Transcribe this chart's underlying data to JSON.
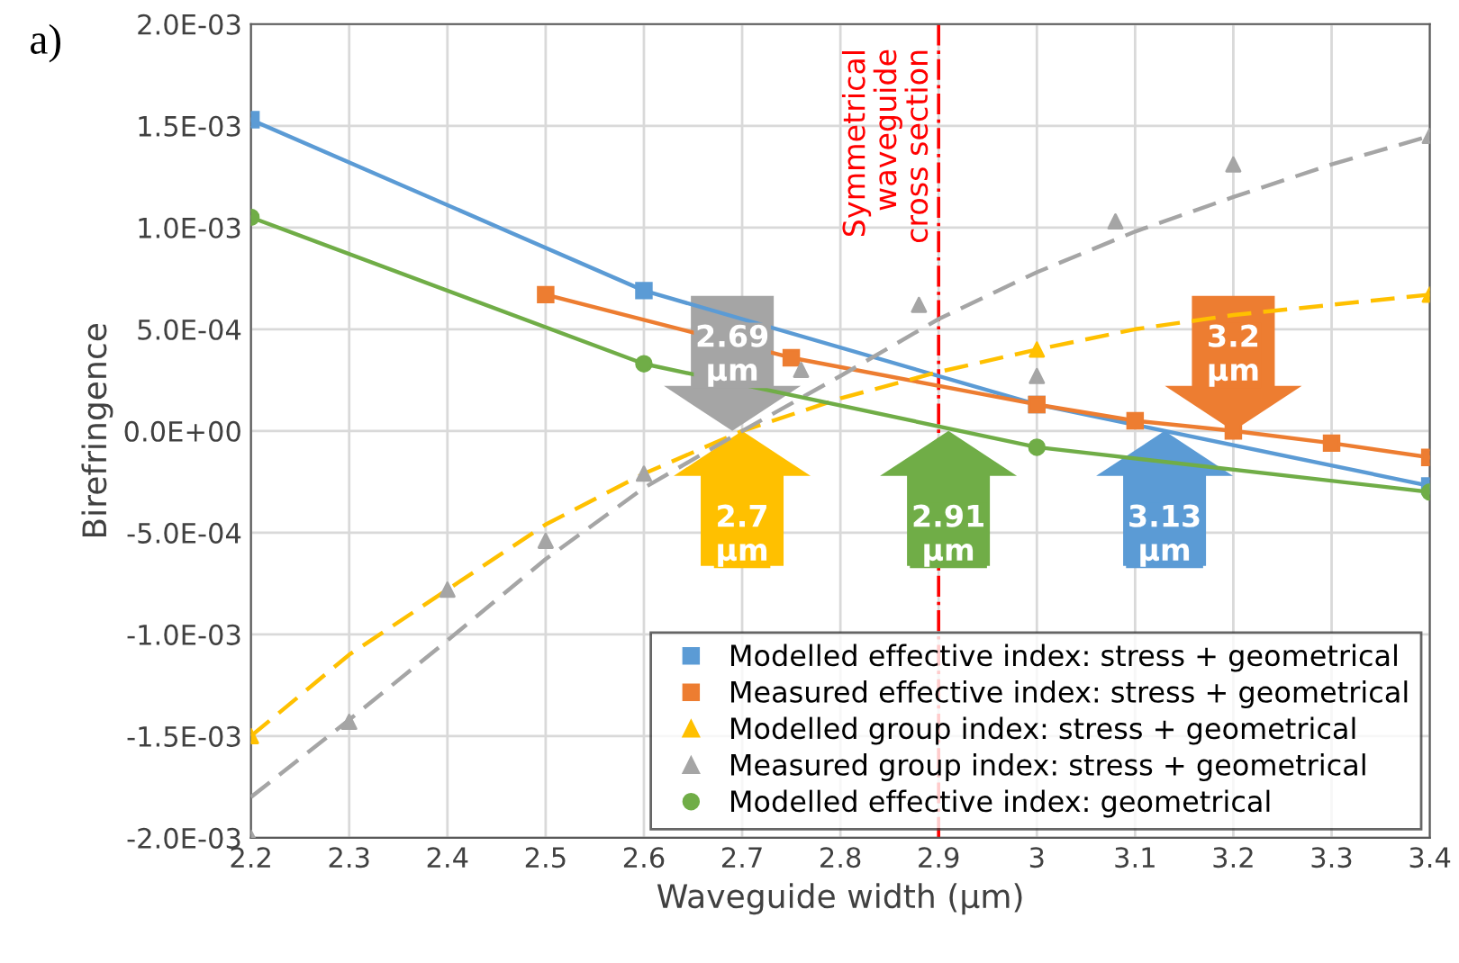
{
  "chart_data": {
    "type": "line",
    "xlabel": "Waveguide width (µm)",
    "ylabel": "Birefringence",
    "xlim": [
      2.2,
      3.4
    ],
    "xticks": [
      2.2,
      2.3,
      2.4,
      2.5,
      2.6,
      2.7,
      2.8,
      2.9,
      3,
      3.1,
      3.2,
      3.3,
      3.4
    ],
    "ylim": [
      -0.002,
      0.002
    ],
    "yticks": [
      {
        "value": -0.002,
        "label": "-2.0E-03"
      },
      {
        "value": -0.0015,
        "label": "-1.5E-03"
      },
      {
        "value": -0.001,
        "label": "-1.0E-03"
      },
      {
        "value": -0.0005,
        "label": "-5.0E-04"
      },
      {
        "value": 0,
        "label": "0.0E+00"
      },
      {
        "value": 0.0005,
        "label": "5.0E-04"
      },
      {
        "value": 0.001,
        "label": "1.0E-03"
      },
      {
        "value": 0.0015,
        "label": "1.5E-03"
      },
      {
        "value": 0.002,
        "label": "2.0E-03"
      }
    ],
    "grid": true,
    "legend": "bottom right",
    "series": [
      {
        "name": "Modelled effective index: stress + geometrical",
        "color": "#5b9bd5",
        "marker": "square",
        "line_style": "solid",
        "x": [
          2.2,
          2.6,
          3.0,
          3.4
        ],
        "values": [
          0.00153,
          0.00069,
          0.00013,
          -0.00027
        ]
      },
      {
        "name": "Measured effective index: stress + geometrical",
        "color": "#ed7d31",
        "marker": "square",
        "line_style": "solid",
        "x": [
          2.5,
          2.75,
          3.0,
          3.1,
          3.2,
          3.3,
          3.4
        ],
        "values": [
          0.00067,
          0.00036,
          0.00013,
          5e-05,
          0.0,
          -6e-05,
          -0.00013
        ]
      },
      {
        "name": "Modelled group index: stress + geometrical",
        "color": "#ffc000",
        "type": "scatter",
        "marker": "triangle",
        "x": [
          2.2,
          3.0,
          3.4
        ],
        "values": [
          -0.0015,
          0.0004,
          0.00067
        ]
      },
      {
        "color": "#ffc000",
        "marker": "none",
        "line_style": "dashed",
        "x": [
          2.2,
          2.3,
          2.4,
          2.5,
          2.6,
          2.7,
          2.8,
          2.9,
          3.0,
          3.1,
          3.2,
          3.3,
          3.4
        ],
        "values": [
          -0.0015,
          -0.0011,
          -0.00078,
          -0.00046,
          -0.00021,
          0.0,
          0.00016,
          0.00029,
          0.0004,
          0.0005,
          0.00057,
          0.00062,
          0.00067
        ]
      },
      {
        "name": "Measured group index: stress + geometrical",
        "color": "#a5a5a5",
        "type": "scatter",
        "marker": "triangle",
        "x": [
          2.2,
          2.3,
          2.4,
          2.5,
          2.6,
          2.76,
          2.88,
          3.0,
          3.08,
          3.2,
          3.4
        ],
        "values": [
          -0.002,
          -0.00143,
          -0.00078,
          -0.00054,
          -0.00021,
          0.0003,
          0.00062,
          0.00027,
          0.00103,
          0.00131,
          0.00145
        ]
      },
      {
        "color": "#a5a5a5",
        "marker": "none",
        "line_style": "dashed",
        "x": [
          2.2,
          2.3,
          2.4,
          2.5,
          2.6,
          2.7,
          2.8,
          2.9,
          3.0,
          3.1,
          3.2,
          3.3,
          3.4
        ],
        "values": [
          -0.0018,
          -0.00142,
          -0.00103,
          -0.00063,
          -0.00028,
          0.0,
          0.00027,
          0.00055,
          0.00078,
          0.00098,
          0.00115,
          0.00131,
          0.00145
        ]
      },
      {
        "name": "Modelled effective index: geometrical",
        "color": "#70ad47",
        "marker": "circle",
        "line_style": "solid",
        "x": [
          2.2,
          2.6,
          3.0,
          3.4
        ],
        "values": [
          0.00105,
          0.00033,
          -8e-05,
          -0.0003
        ]
      }
    ],
    "ref_lines": [
      {
        "axis": "x",
        "value": 2.9,
        "label": "Symmetrical\nwaveguide\ncross section",
        "color": "#ff0000",
        "line_style": "dashdot"
      }
    ],
    "annotations": [
      "a)",
      {
        "text": "2.7\nµm",
        "x": 2.7,
        "y": 0
      },
      {
        "text": "2.69\nµm",
        "x": 2.69,
        "y": 0
      },
      {
        "text": "2.91\nµm",
        "x": 2.91,
        "y": 0
      },
      {
        "text": "3.13\nµm",
        "x": 3.13,
        "y": 0
      },
      {
        "text": "3.2\nµm",
        "x": 3.2,
        "y": 0
      }
    ]
  }
}
